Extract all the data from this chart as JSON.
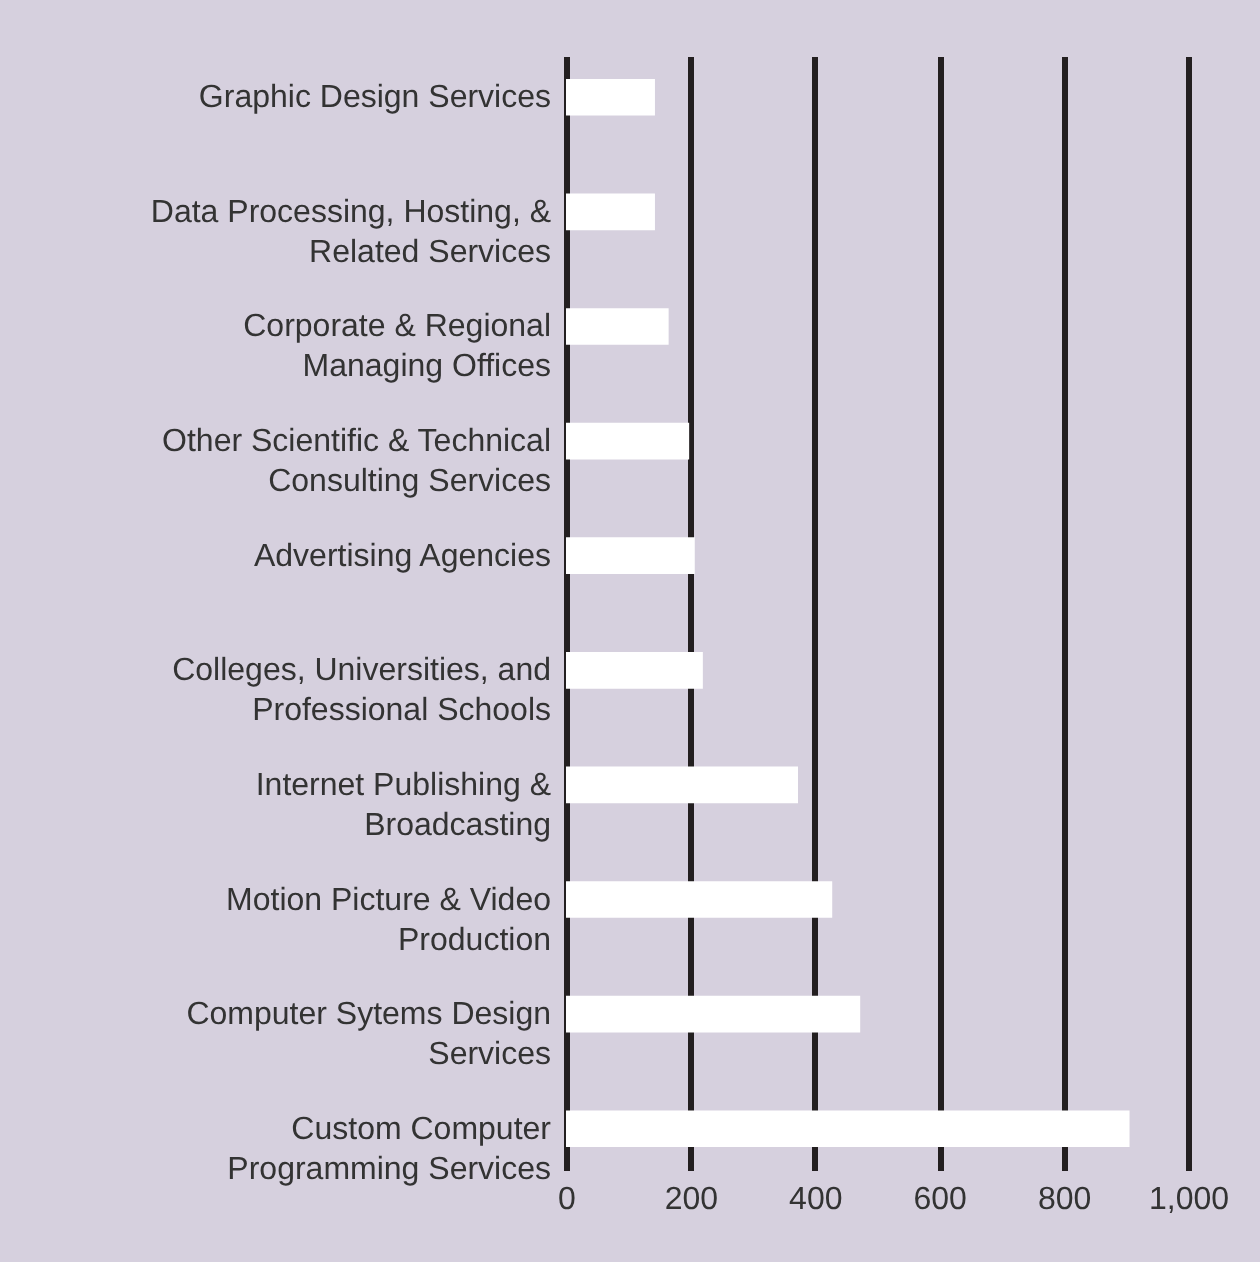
{
  "chart_data": {
    "type": "bar",
    "orientation": "horizontal",
    "categories": [
      "Graphic Design Services",
      "Data Processing, Hosting, &\nRelated Services",
      "Corporate & Regional\nManaging Offices",
      "Other Scientific & Technical\nConsulting Services",
      "Advertising Agencies",
      "Colleges, Universities, and\nProfessional Schools",
      "Internet Publishing &\nBroadcasting",
      "Motion Picture & Video\nProduction",
      "Computer Sytems Design\nServices",
      "Custom Computer\nProgramming Services"
    ],
    "values": [
      143,
      143,
      165,
      198,
      207,
      220,
      373,
      428,
      473,
      906
    ],
    "color": "#ffffff",
    "xlim": [
      0,
      1000
    ],
    "xticks": [
      0,
      200,
      400,
      600,
      800,
      {
        "value": 1000,
        "label": "1,000"
      }
    ],
    "grid": "x"
  }
}
